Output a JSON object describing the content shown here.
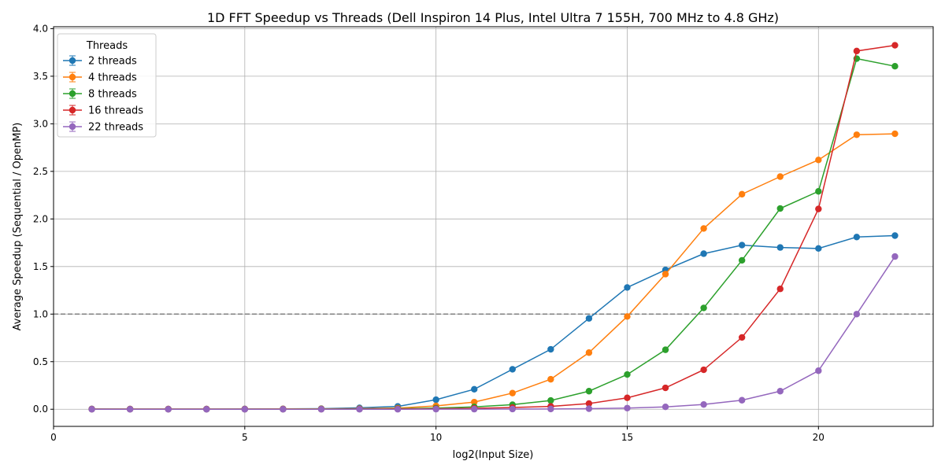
{
  "chart_data": {
    "type": "line",
    "title": "1D FFT Speedup vs Threads (Dell Inspiron 14 Plus, Intel Ultra 7 155H, 700 MHz to 4.8 GHz)",
    "xlabel": "log2(Input Size)",
    "ylabel": "Average Speedup (Sequential / OpenMP)",
    "xlim": [
      0,
      23
    ],
    "ylim": [
      -0.18,
      4.02
    ],
    "xticks": [
      0,
      5,
      10,
      15,
      20
    ],
    "yticks": [
      0.0,
      0.5,
      1.0,
      1.5,
      2.0,
      2.5,
      3.0,
      3.5,
      4.0
    ],
    "grid": true,
    "reference_line": {
      "y": 1.0,
      "style": "dashed",
      "color": "#808080"
    },
    "legend": {
      "title": "Threads",
      "position": "top-left"
    },
    "x": [
      1,
      2,
      3,
      4,
      5,
      6,
      7,
      8,
      9,
      10,
      11,
      12,
      13,
      14,
      15,
      16,
      17,
      18,
      19,
      20,
      21,
      22
    ],
    "series": [
      {
        "name": "2 threads",
        "color": "#1f77b4",
        "values": [
          0.003,
          0.002,
          0.002,
          0.002,
          0.003,
          0.004,
          0.006,
          0.015,
          0.03,
          0.1,
          0.21,
          0.42,
          0.63,
          0.955,
          1.28,
          1.465,
          1.635,
          1.725,
          1.7,
          1.69,
          1.81,
          1.825
        ]
      },
      {
        "name": "4 threads",
        "color": "#ff7f0e",
        "values": [
          0.002,
          0.002,
          0.002,
          0.002,
          0.002,
          0.003,
          0.004,
          0.006,
          0.012,
          0.035,
          0.075,
          0.17,
          0.315,
          0.595,
          0.975,
          1.42,
          1.9,
          2.26,
          2.445,
          2.62,
          2.885,
          2.895
        ]
      },
      {
        "name": "8 threads",
        "color": "#2ca02c",
        "values": [
          0.001,
          0.001,
          0.001,
          0.001,
          0.001,
          0.001,
          0.002,
          0.003,
          0.006,
          0.012,
          0.025,
          0.048,
          0.092,
          0.19,
          0.365,
          0.625,
          1.065,
          1.565,
          2.11,
          2.29,
          3.685,
          3.605
        ]
      },
      {
        "name": "16 threads",
        "color": "#d62728",
        "values": [
          0.001,
          0.001,
          0.001,
          0.001,
          0.001,
          0.001,
          0.001,
          0.002,
          0.003,
          0.005,
          0.01,
          0.018,
          0.03,
          0.06,
          0.12,
          0.225,
          0.415,
          0.755,
          1.265,
          2.105,
          3.765,
          3.825
        ]
      },
      {
        "name": "22 threads",
        "color": "#9467bd",
        "values": [
          0.0,
          0.0,
          0.0,
          0.0,
          0.0,
          0.0,
          0.0,
          0.0,
          0.0,
          0.001,
          0.001,
          0.002,
          0.003,
          0.006,
          0.012,
          0.025,
          0.05,
          0.095,
          0.19,
          0.405,
          1.0,
          1.605
        ]
      }
    ]
  }
}
